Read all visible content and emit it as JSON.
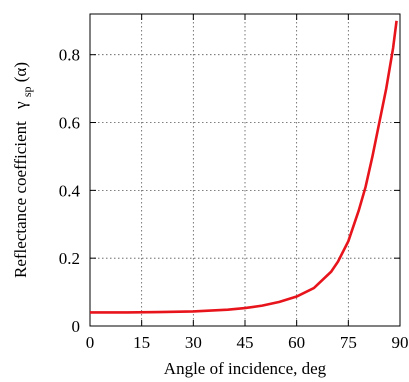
{
  "chart_data": {
    "type": "line",
    "xlabel": "Angle of incidence, deg",
    "ylabel_main": "Reflectance coefficient",
    "ylabel_symbol": "γ",
    "ylabel_sub": "sp",
    "ylabel_arg": "(α)",
    "xlim": [
      0,
      90
    ],
    "ylim": [
      0,
      0.92
    ],
    "xticks": [
      0,
      15,
      30,
      45,
      60,
      75,
      90
    ],
    "xtick_labels": [
      "0",
      "15",
      "30",
      "45",
      "60",
      "75",
      "90"
    ],
    "yticks": [
      0,
      0.2,
      0.4,
      0.6,
      0.8
    ],
    "ytick_labels": [
      "0",
      "0.2",
      "0.4",
      "0.6",
      "0.8"
    ],
    "grid": true,
    "series": [
      {
        "color": "#e8141c",
        "x": [
          0,
          10,
          20,
          30,
          40,
          45,
          50,
          55,
          60,
          65,
          70,
          72,
          75,
          78,
          80,
          82,
          84,
          86,
          88,
          89
        ],
        "y": [
          0.04,
          0.04,
          0.041,
          0.043,
          0.048,
          0.053,
          0.06,
          0.071,
          0.087,
          0.112,
          0.16,
          0.19,
          0.25,
          0.34,
          0.41,
          0.5,
          0.6,
          0.7,
          0.82,
          0.9
        ]
      }
    ]
  }
}
